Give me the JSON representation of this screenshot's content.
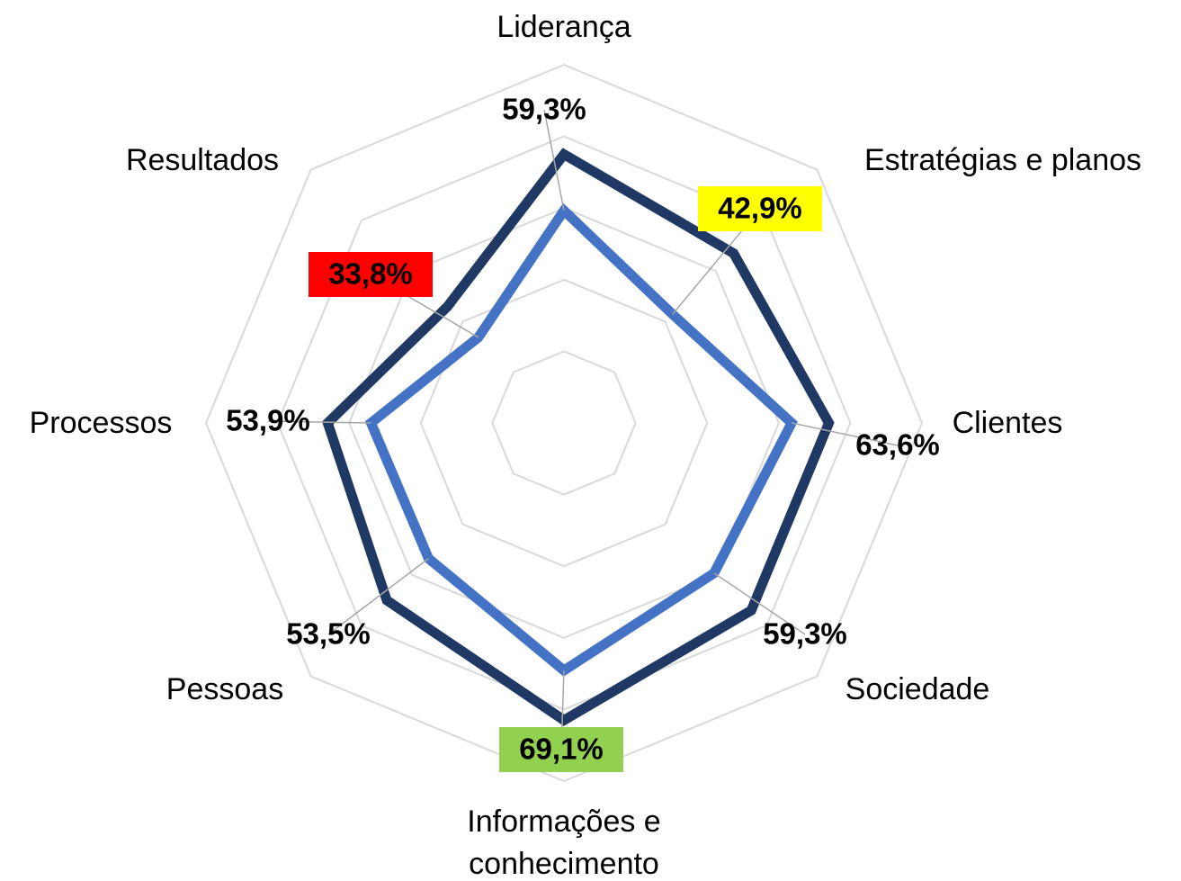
{
  "chart_data": {
    "type": "radar",
    "categories": [
      "Liderança",
      "Estratégias e planos",
      "Clientes",
      "Sociedade",
      "Informações e conhecimento",
      "Pessoas",
      "Processos",
      "Resultados"
    ],
    "series": [
      {
        "color": "#1f3864",
        "values": [
          75,
          67,
          74,
          74,
          83,
          70,
          66,
          46
        ]
      },
      {
        "color": "#4472c4",
        "values": [
          59.3,
          42.9,
          63.6,
          59.3,
          69.1,
          53.5,
          53.9,
          33.8
        ],
        "value_labels": [
          "59,3%",
          "42,9%",
          "63,6%",
          "59,3%",
          "69,1%",
          "53,5%",
          "53,9%",
          "33,8%"
        ],
        "value_label_backgrounds": [
          null,
          "#ffff00",
          null,
          null,
          "#92d050",
          null,
          null,
          "#ff0000"
        ]
      }
    ],
    "ylim": [
      0,
      100
    ],
    "yticks": [
      20,
      40,
      60,
      80,
      100
    ],
    "grid": true,
    "grid_color": "#d9d9d9"
  }
}
